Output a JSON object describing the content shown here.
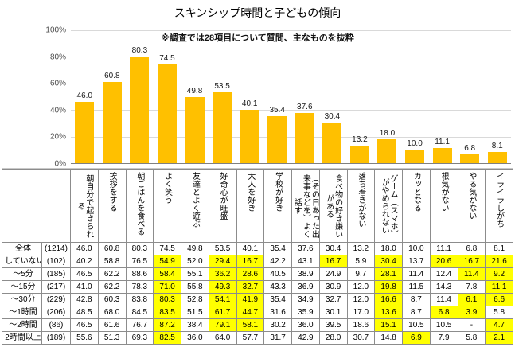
{
  "header": {
    "title": "スキンシップ時間と子どもの傾向",
    "subtitle": "※調査では28項目について質問、主なものを抜粋"
  },
  "chart_data": {
    "type": "bar",
    "title": "スキンシップ時間と子どもの傾向",
    "subtitle": "※調査では28項目について質問、主なものを抜粋",
    "categories": [
      "朝自分で起きられる",
      "挨拶をする",
      "朝ごはんを食べる",
      "よく笑う",
      "友達とよく遊ぶ",
      "好奇心が旺盛",
      "大人を好き",
      "学校が好き",
      "（その日あった出来事などを）よく話す",
      "食べ物の好き嫌いがある",
      "落ち着きがない",
      "ゲーム（スマホ）がやめられない",
      "カッとなる",
      "根気がない",
      "やる気がない",
      "イライラしがち"
    ],
    "values": [
      46.0,
      60.8,
      80.3,
      74.5,
      49.8,
      53.5,
      40.1,
      35.4,
      37.6,
      30.4,
      13.2,
      18.0,
      10.0,
      11.1,
      6.8,
      8.1
    ],
    "ylim": [
      0,
      100
    ],
    "ytick_labels": [
      "100%",
      "80%",
      "60%",
      "40%",
      "20%",
      "0%"
    ],
    "grid": true,
    "legend": "none",
    "bar_color": "#FFC000"
  },
  "table": {
    "rows": [
      {
        "label": "全体",
        "n": "(1214)",
        "values": [
          "46.0",
          "60.8",
          "80.3",
          "74.5",
          "49.8",
          "53.5",
          "40.1",
          "35.4",
          "37.6",
          "30.4",
          "13.2",
          "18.0",
          "10.0",
          "11.1",
          "6.8",
          "8.1"
        ],
        "highlighted_columns": []
      },
      {
        "label": "していない",
        "n": "(102)",
        "values": [
          "40.2",
          "58.8",
          "76.5",
          "54.9",
          "52.0",
          "29.4",
          "16.7",
          "42.2",
          "43.1",
          "16.7",
          "5.9",
          "30.4",
          "13.7",
          "20.6",
          "16.7",
          "21.6"
        ],
        "highlighted_columns": [
          3,
          5,
          6,
          9,
          11,
          13,
          14,
          15
        ]
      },
      {
        "label": "～5分",
        "n": "(185)",
        "values": [
          "46.5",
          "62.2",
          "88.6",
          "58.4",
          "55.1",
          "36.2",
          "28.6",
          "40.5",
          "38.9",
          "24.9",
          "9.7",
          "28.1",
          "11.4",
          "12.4",
          "11.4",
          "9.2"
        ],
        "highlighted_columns": [
          3,
          5,
          6,
          11,
          14,
          15
        ]
      },
      {
        "label": "～15分",
        "n": "(217)",
        "values": [
          "41.0",
          "62.2",
          "78.3",
          "71.0",
          "55.8",
          "49.3",
          "32.7",
          "43.3",
          "36.9",
          "30.9",
          "12.0",
          "19.8",
          "11.5",
          "14.3",
          "7.8",
          "11.1"
        ],
        "highlighted_columns": [
          3,
          5,
          6,
          11,
          15
        ]
      },
      {
        "label": "～30分",
        "n": "(229)",
        "values": [
          "42.8",
          "60.3",
          "83.8",
          "80.3",
          "52.8",
          "54.1",
          "41.9",
          "35.4",
          "34.9",
          "32.7",
          "12.0",
          "16.6",
          "8.7",
          "11.4",
          "6.1",
          "6.6"
        ],
        "highlighted_columns": [
          3,
          5,
          6,
          11,
          14,
          15
        ]
      },
      {
        "label": "～1時間",
        "n": "(206)",
        "values": [
          "48.5",
          "68.0",
          "84.5",
          "83.5",
          "51.5",
          "61.7",
          "44.7",
          "31.6",
          "35.9",
          "30.1",
          "17.0",
          "13.6",
          "8.7",
          "6.8",
          "3.9",
          "5.8"
        ],
        "highlighted_columns": [
          3,
          5,
          6,
          11,
          13,
          14
        ]
      },
      {
        "label": "～2時間",
        "n": "(86)",
        "values": [
          "46.5",
          "61.6",
          "76.7",
          "87.2",
          "38.4",
          "79.1",
          "58.1",
          "30.2",
          "36.0",
          "39.5",
          "18.6",
          "15.1",
          "10.5",
          "10.5",
          "-",
          "4.7"
        ],
        "highlighted_columns": [
          3,
          5,
          6,
          11,
          15
        ]
      },
      {
        "label": "2時間以上",
        "n": "(189)",
        "values": [
          "55.6",
          "51.3",
          "69.3",
          "82.5",
          "36.0",
          "64.0",
          "57.7",
          "31.7",
          "42.9",
          "28.0",
          "30.7",
          "14.8",
          "6.9",
          "7.9",
          "5.8",
          "2.1"
        ],
        "highlighted_columns": [
          3,
          12,
          15
        ]
      }
    ]
  },
  "colors": {
    "bar": "#FFC000",
    "highlight": "#FFFF00",
    "gridline": "#D9D9D9",
    "axis": "#808080"
  }
}
